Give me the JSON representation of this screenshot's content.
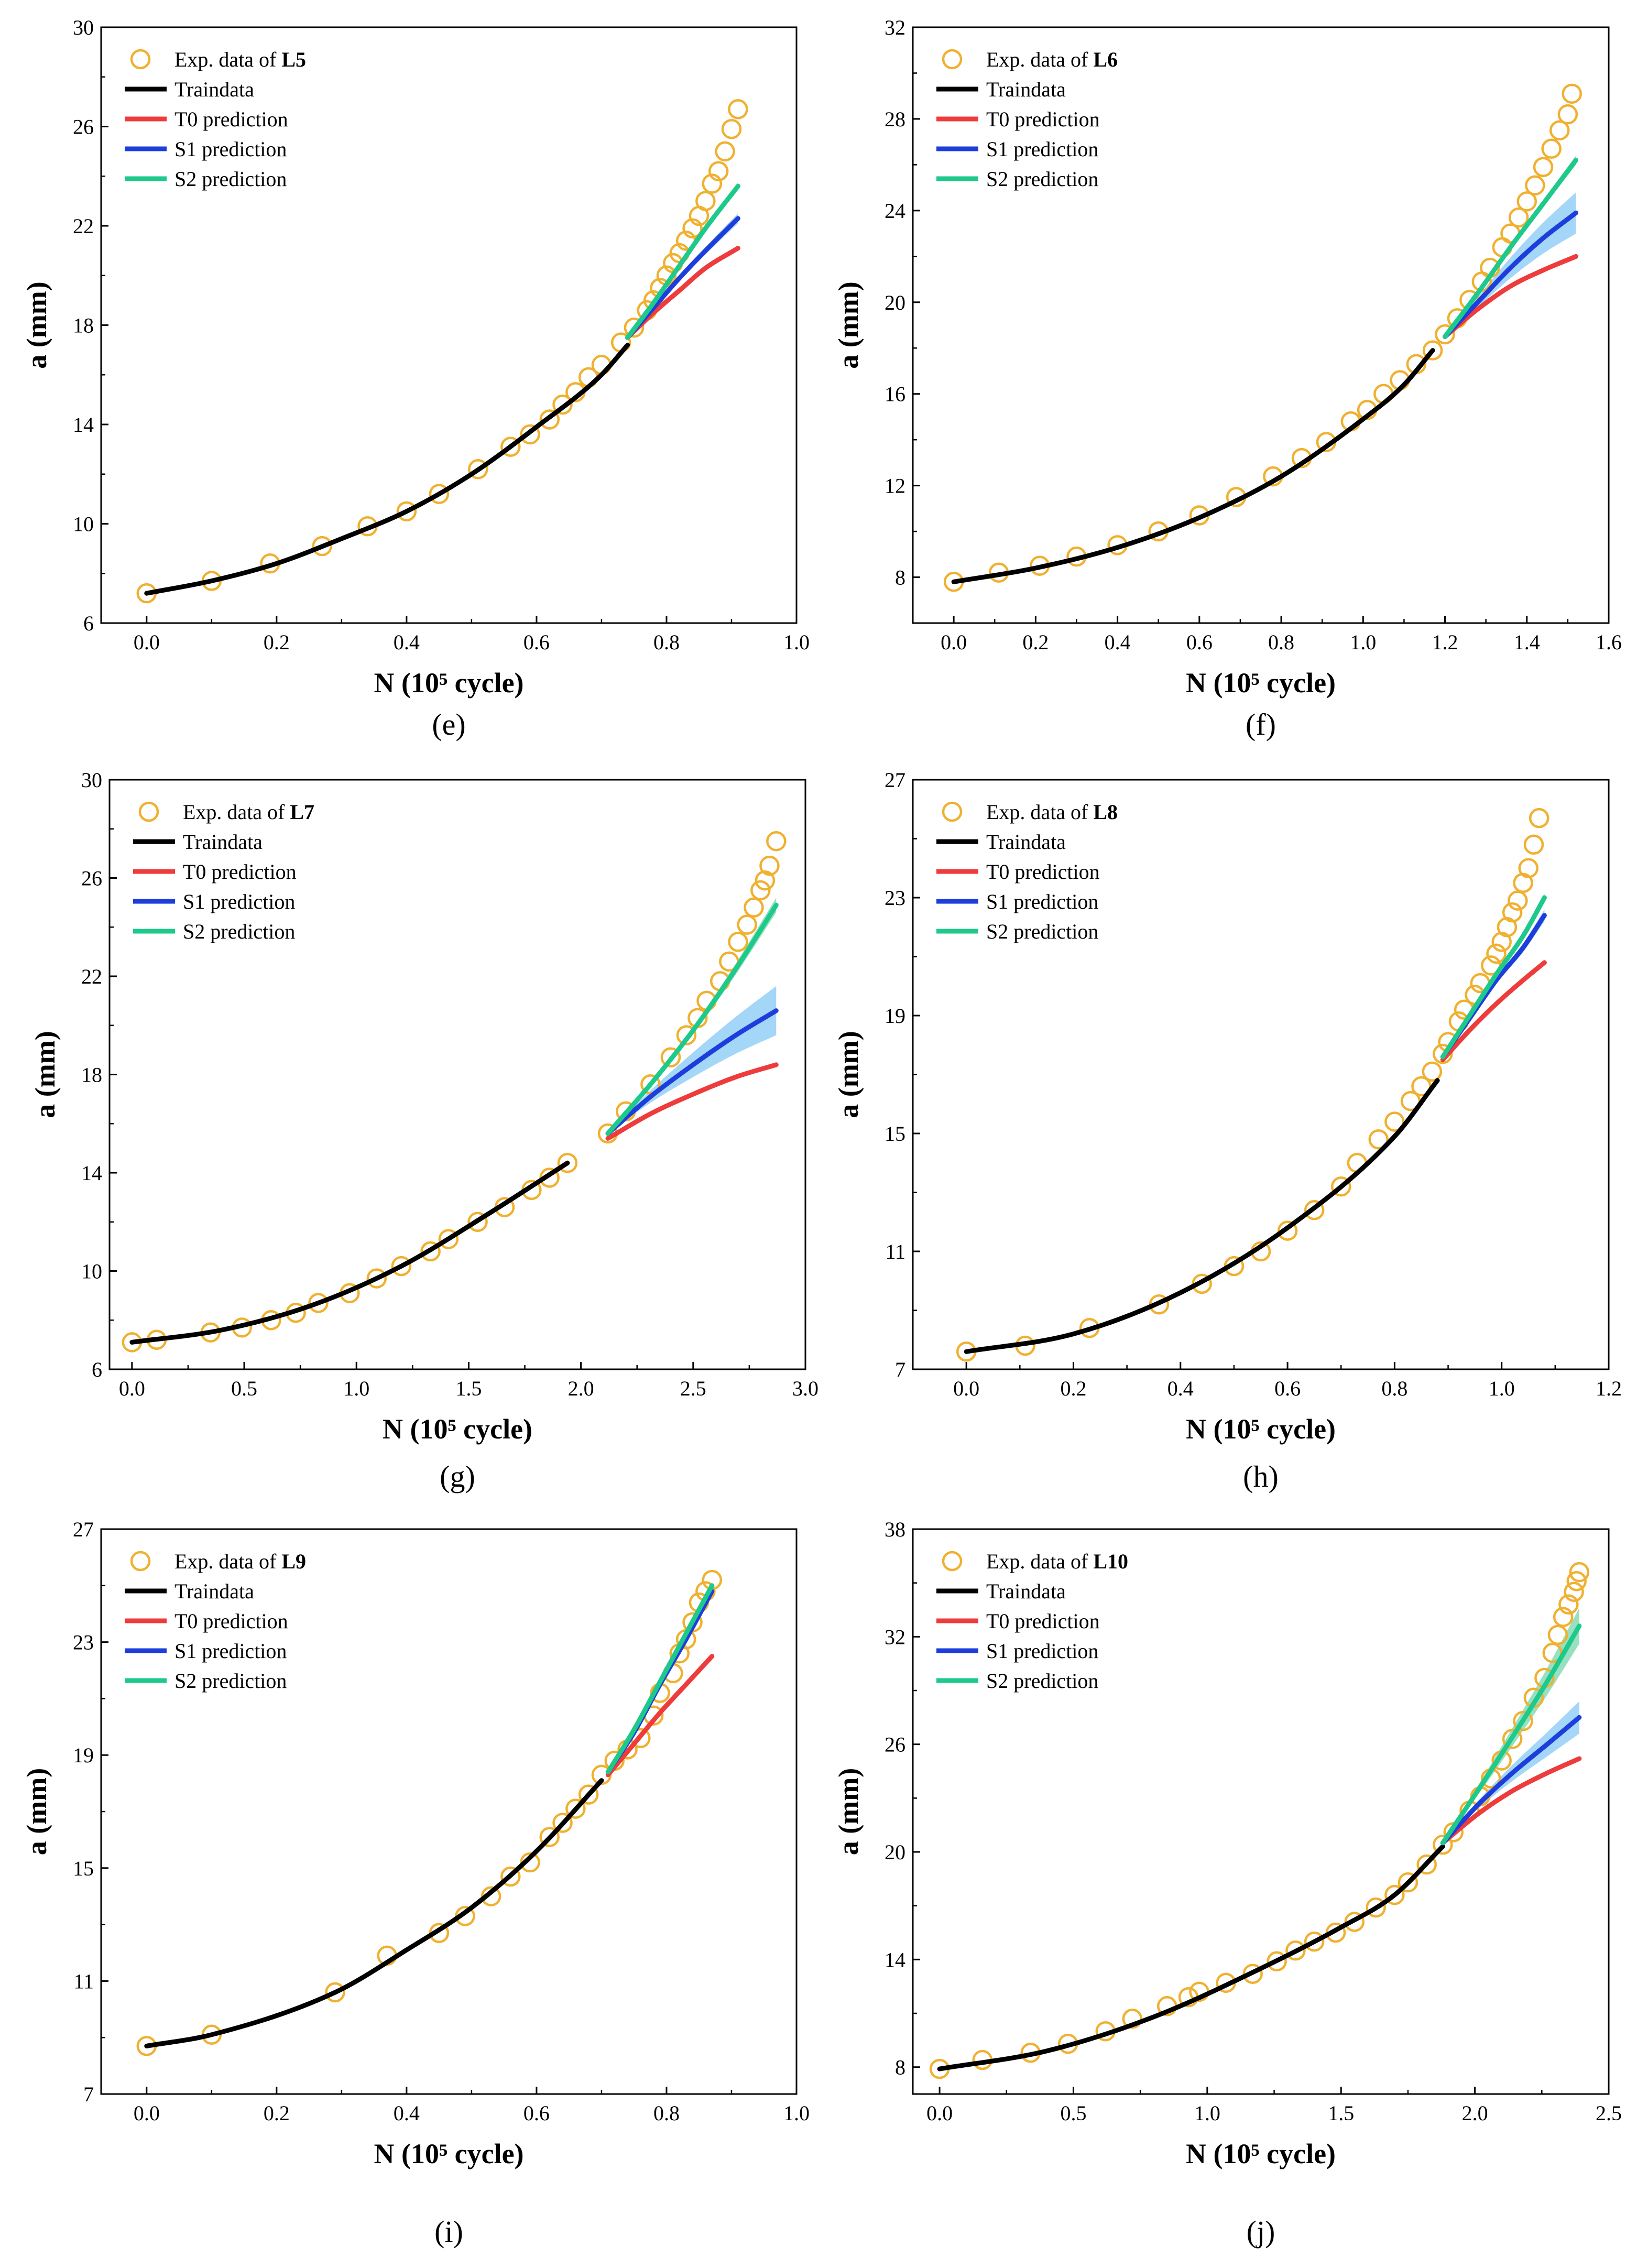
{
  "figure": {
    "colors": {
      "experimental": "#F0B030",
      "traindata": "#000000",
      "t0": "#EE3B3B",
      "s1": "#1E3EDC",
      "s2": "#1DC98B",
      "s1_band": "#8CCCF5",
      "s2_band": "#7ED8B0"
    },
    "legend_series_names": {
      "exp_prefix": "Exp. data of ",
      "traindata": "Traindata",
      "t0": "T0 prediction",
      "s1": "S1 prediction",
      "s2": "S2 prediction"
    }
  },
  "chart_data": [
    {
      "panel": "(e)",
      "caption_letter": "e",
      "specimen": "L5",
      "type": "scatter+line",
      "xlabel": "N (10⁵ cycle)",
      "ylabel": "a (mm)",
      "xlim": [
        -0.07,
        1.0
      ],
      "ylim": [
        6,
        30
      ],
      "xticks": [
        "0.0",
        "0.2",
        "0.4",
        "0.6",
        "0.8",
        "1.0"
      ],
      "xtick_values": [
        0.0,
        0.2,
        0.4,
        0.6,
        0.8,
        1.0
      ],
      "yticks": [
        "6",
        "10",
        "14",
        "18",
        "22",
        "26",
        "30"
      ],
      "ytick_values": [
        6,
        10,
        14,
        18,
        22,
        26,
        30
      ],
      "exp_x": [
        0.0,
        0.1,
        0.19,
        0.27,
        0.34,
        0.4,
        0.45,
        0.51,
        0.56,
        0.59,
        0.62,
        0.64,
        0.66,
        0.68,
        0.7,
        0.73,
        0.75,
        0.77,
        0.78,
        0.79,
        0.8,
        0.81,
        0.82,
        0.83,
        0.84,
        0.85,
        0.86,
        0.87,
        0.88,
        0.89,
        0.9,
        0.91
      ],
      "exp_y": [
        7.2,
        7.7,
        8.4,
        9.1,
        9.9,
        10.5,
        11.2,
        12.2,
        13.1,
        13.6,
        14.2,
        14.8,
        15.3,
        15.9,
        16.4,
        17.3,
        17.9,
        18.6,
        19.0,
        19.5,
        20.0,
        20.5,
        20.9,
        21.4,
        21.9,
        22.4,
        23.0,
        23.7,
        24.2,
        25.0,
        25.9,
        26.7
      ],
      "train_x": [
        0.0,
        0.1,
        0.2,
        0.3,
        0.4,
        0.5,
        0.6,
        0.7,
        0.74
      ],
      "train_y": [
        7.2,
        7.7,
        8.4,
        9.4,
        10.5,
        12.0,
        13.9,
        16.0,
        17.2
      ],
      "pred_x": [
        0.74,
        0.78,
        0.82,
        0.86,
        0.91
      ],
      "t0_y": [
        17.5,
        18.5,
        19.4,
        20.3,
        21.1
      ],
      "s1_y": [
        17.5,
        18.7,
        19.9,
        21.0,
        22.3
      ],
      "s1_band": 0.2,
      "s2_y": [
        17.5,
        18.9,
        20.4,
        21.9,
        23.6
      ],
      "s2_band": 0.15
    },
    {
      "panel": "(f)",
      "caption_letter": "f",
      "specimen": "L6",
      "type": "scatter+line",
      "xlabel": "N (10⁵ cycle)",
      "ylabel": "a (mm)",
      "xlim": [
        -0.1,
        1.6
      ],
      "ylim": [
        6,
        32
      ],
      "xticks": [
        "0.0",
        "0.2",
        "0.4",
        "0.6",
        "0.8",
        "1.0",
        "1.2",
        "1.4",
        "1.6"
      ],
      "xtick_values": [
        0.0,
        0.2,
        0.4,
        0.6,
        0.8,
        1.0,
        1.2,
        1.4,
        1.6
      ],
      "yticks": [
        "8",
        "12",
        "16",
        "20",
        "24",
        "28",
        "32"
      ],
      "ytick_values": [
        8,
        12,
        16,
        20,
        24,
        28,
        32
      ],
      "exp_x": [
        0.0,
        0.11,
        0.21,
        0.3,
        0.4,
        0.5,
        0.6,
        0.69,
        0.78,
        0.85,
        0.91,
        0.97,
        1.01,
        1.05,
        1.09,
        1.13,
        1.17,
        1.2,
        1.23,
        1.26,
        1.29,
        1.31,
        1.34,
        1.36,
        1.38,
        1.4,
        1.42,
        1.44,
        1.46,
        1.48,
        1.5,
        1.51
      ],
      "exp_y": [
        7.8,
        8.2,
        8.5,
        8.9,
        9.4,
        10.0,
        10.7,
        11.5,
        12.4,
        13.2,
        13.9,
        14.8,
        15.3,
        16.0,
        16.6,
        17.3,
        17.9,
        18.6,
        19.3,
        20.1,
        20.9,
        21.5,
        22.4,
        23.0,
        23.7,
        24.4,
        25.1,
        25.9,
        26.7,
        27.5,
        28.2,
        29.1
      ],
      "train_x": [
        0.0,
        0.2,
        0.4,
        0.6,
        0.8,
        1.0,
        1.1,
        1.17
      ],
      "train_y": [
        7.8,
        8.4,
        9.3,
        10.6,
        12.4,
        14.9,
        16.4,
        17.9
      ],
      "pred_x": [
        1.2,
        1.28,
        1.36,
        1.44,
        1.52
      ],
      "t0_y": [
        18.5,
        19.7,
        20.7,
        21.4,
        22.0
      ],
      "s1_y": [
        18.5,
        20.0,
        21.5,
        22.8,
        23.9
      ],
      "s1_band": 0.9,
      "s2_y": [
        18.5,
        20.4,
        22.4,
        24.3,
        26.2
      ],
      "s2_band": 0.2
    },
    {
      "panel": "(g)",
      "caption_letter": "g",
      "specimen": "L7",
      "type": "scatter+line",
      "xlabel": "N (10⁵ cycle)",
      "ylabel": "a (mm)",
      "xlim": [
        -0.1,
        3.0
      ],
      "ylim": [
        6,
        30
      ],
      "xticks": [
        "0.0",
        "0.5",
        "1.0",
        "1.5",
        "2.0",
        "2.5",
        "3.0"
      ],
      "xtick_values": [
        0.0,
        0.5,
        1.0,
        1.5,
        2.0,
        2.5,
        3.0
      ],
      "yticks": [
        "6",
        "10",
        "14",
        "18",
        "22",
        "26",
        "30"
      ],
      "ytick_values": [
        6,
        10,
        14,
        18,
        22,
        26,
        30
      ],
      "exp_x": [
        0.0,
        0.11,
        0.35,
        0.49,
        0.62,
        0.73,
        0.83,
        0.97,
        1.09,
        1.2,
        1.33,
        1.41,
        1.54,
        1.66,
        1.78,
        1.86,
        1.94,
        2.12,
        2.2,
        2.31,
        2.4,
        2.47,
        2.52,
        2.56,
        2.62,
        2.66,
        2.7,
        2.74,
        2.77,
        2.8,
        2.82,
        2.84,
        2.87
      ],
      "exp_y": [
        7.1,
        7.2,
        7.5,
        7.7,
        8.0,
        8.3,
        8.7,
        9.1,
        9.7,
        10.2,
        10.8,
        11.3,
        12.0,
        12.6,
        13.3,
        13.8,
        14.4,
        15.6,
        16.5,
        17.6,
        18.7,
        19.6,
        20.3,
        21.0,
        21.8,
        22.6,
        23.4,
        24.1,
        24.8,
        25.5,
        25.9,
        26.5,
        27.5
      ],
      "train_x": [
        0.0,
        0.4,
        0.8,
        1.2,
        1.6,
        1.94
      ],
      "train_y": [
        7.1,
        7.6,
        8.6,
        10.2,
        12.4,
        14.4
      ],
      "pred_x": [
        2.12,
        2.31,
        2.5,
        2.69,
        2.87
      ],
      "t0_y": [
        15.4,
        16.4,
        17.2,
        17.9,
        18.4
      ],
      "s1_y": [
        15.6,
        17.1,
        18.4,
        19.6,
        20.6
      ],
      "s1_band": 1.0,
      "s2_y": [
        15.6,
        17.6,
        19.8,
        22.3,
        24.9
      ],
      "s2_band": 0.3
    },
    {
      "panel": "(h)",
      "caption_letter": "h",
      "specimen": "L8",
      "type": "scatter+line",
      "xlabel": "N (10⁵ cycle)",
      "ylabel": "a (mm)",
      "xlim": [
        -0.1,
        1.2
      ],
      "ylim": [
        7,
        27
      ],
      "xticks": [
        "0.0",
        "0.2",
        "0.4",
        "0.6",
        "0.8",
        "1.0",
        "1.2"
      ],
      "xtick_values": [
        0.0,
        0.2,
        0.4,
        0.6,
        0.8,
        1.0,
        1.2
      ],
      "yticks": [
        "7",
        "11",
        "15",
        "19",
        "23",
        "27"
      ],
      "ytick_values": [
        7,
        11,
        15,
        19,
        23,
        27
      ],
      "exp_x": [
        0.0,
        0.11,
        0.23,
        0.36,
        0.44,
        0.5,
        0.55,
        0.6,
        0.65,
        0.7,
        0.73,
        0.77,
        0.8,
        0.83,
        0.85,
        0.87,
        0.89,
        0.9,
        0.92,
        0.93,
        0.95,
        0.96,
        0.98,
        0.99,
        1.0,
        1.01,
        1.02,
        1.03,
        1.04,
        1.05,
        1.06,
        1.07
      ],
      "exp_y": [
        7.6,
        7.8,
        8.4,
        9.2,
        9.9,
        10.5,
        11.0,
        11.7,
        12.4,
        13.2,
        14.0,
        14.8,
        15.4,
        16.1,
        16.6,
        17.1,
        17.7,
        18.1,
        18.8,
        19.2,
        19.7,
        20.1,
        20.7,
        21.1,
        21.5,
        22.0,
        22.5,
        22.9,
        23.5,
        24.0,
        24.8,
        25.7
      ],
      "train_x": [
        0.0,
        0.2,
        0.4,
        0.6,
        0.8,
        0.88
      ],
      "train_y": [
        7.6,
        8.2,
        9.6,
        11.8,
        14.9,
        16.8
      ],
      "pred_x": [
        0.89,
        0.94,
        0.99,
        1.04,
        1.08
      ],
      "t0_y": [
        17.5,
        18.5,
        19.4,
        20.2,
        20.8
      ],
      "s1_y": [
        17.6,
        18.9,
        20.2,
        21.3,
        22.4
      ],
      "s1_band": 0.2,
      "s2_y": [
        17.6,
        19.0,
        20.4,
        21.7,
        23.0
      ],
      "s2_band": 0.15
    },
    {
      "panel": "(i)",
      "caption_letter": "i",
      "specimen": "L9",
      "type": "scatter+line",
      "xlabel": "N (10⁵ cycle)",
      "ylabel": "a (mm)",
      "xlim": [
        -0.07,
        1.0
      ],
      "ylim": [
        7,
        27
      ],
      "xticks": [
        "0.0",
        "0.2",
        "0.4",
        "0.6",
        "0.8",
        "1.0"
      ],
      "xtick_values": [
        0.0,
        0.2,
        0.4,
        0.6,
        0.8,
        1.0
      ],
      "yticks": [
        "7",
        "11",
        "15",
        "19",
        "23",
        "27"
      ],
      "ytick_values": [
        7,
        11,
        15,
        19,
        23,
        27
      ],
      "exp_x": [
        0.0,
        0.1,
        0.29,
        0.37,
        0.45,
        0.49,
        0.53,
        0.56,
        0.59,
        0.62,
        0.64,
        0.66,
        0.68,
        0.7,
        0.72,
        0.74,
        0.76,
        0.78,
        0.79,
        0.81,
        0.82,
        0.83,
        0.84,
        0.85,
        0.86,
        0.87
      ],
      "exp_y": [
        8.7,
        9.1,
        10.6,
        11.9,
        12.7,
        13.3,
        14.0,
        14.7,
        15.2,
        16.1,
        16.6,
        17.1,
        17.6,
        18.3,
        18.8,
        19.2,
        19.6,
        20.4,
        21.2,
        21.9,
        22.6,
        23.1,
        23.7,
        24.4,
        24.8,
        25.2
      ],
      "train_x": [
        0.0,
        0.1,
        0.29,
        0.4,
        0.5,
        0.6,
        0.7
      ],
      "train_y": [
        8.7,
        9.1,
        10.6,
        12.1,
        13.6,
        15.6,
        18.1
      ],
      "pred_x": [
        0.71,
        0.75,
        0.79,
        0.83,
        0.87
      ],
      "t0_y": [
        18.3,
        19.4,
        20.5,
        21.5,
        22.5
      ],
      "s1_y": [
        18.4,
        19.8,
        21.5,
        23.1,
        24.8
      ],
      "s1_band": 0.15,
      "s2_y": [
        18.4,
        19.9,
        21.6,
        23.3,
        25.0
      ],
      "s2_band": 0.1
    },
    {
      "panel": "(j)",
      "caption_letter": "j",
      "specimen": "L10",
      "type": "scatter+line",
      "xlabel": "N (10⁵ cycle)",
      "ylabel": "a (mm)",
      "xlim": [
        -0.1,
        2.5
      ],
      "ylim": [
        6.5,
        38
      ],
      "xticks": [
        "0.0",
        "0.5",
        "1.0",
        "1.5",
        "2.0",
        "2.5"
      ],
      "xtick_values": [
        0.0,
        0.5,
        1.0,
        1.5,
        2.0,
        2.5
      ],
      "yticks": [
        "8",
        "14",
        "20",
        "26",
        "32",
        "38"
      ],
      "ytick_values": [
        8,
        14,
        20,
        26,
        32,
        38
      ],
      "exp_x": [
        0.0,
        0.16,
        0.34,
        0.48,
        0.62,
        0.72,
        0.85,
        0.93,
        0.97,
        1.07,
        1.17,
        1.26,
        1.33,
        1.4,
        1.48,
        1.55,
        1.63,
        1.7,
        1.75,
        1.82,
        1.88,
        1.92,
        1.98,
        2.02,
        2.06,
        2.1,
        2.14,
        2.18,
        2.22,
        2.26,
        2.29,
        2.31,
        2.33,
        2.35,
        2.37,
        2.38,
        2.39
      ],
      "exp_y": [
        7.9,
        8.4,
        8.8,
        9.3,
        10.0,
        10.7,
        11.4,
        11.9,
        12.2,
        12.7,
        13.2,
        13.9,
        14.5,
        15.0,
        15.5,
        16.1,
        16.9,
        17.6,
        18.3,
        19.3,
        20.4,
        21.1,
        22.3,
        23.1,
        24.1,
        25.1,
        26.3,
        27.3,
        28.6,
        29.7,
        31.1,
        32.1,
        33.1,
        33.8,
        34.5,
        35.1,
        35.6
      ],
      "train_x": [
        0.0,
        0.4,
        0.8,
        1.2,
        1.5,
        1.7,
        1.88
      ],
      "train_y": [
        7.9,
        8.9,
        10.8,
        13.5,
        15.8,
        17.6,
        20.3
      ],
      "pred_x": [
        1.88,
        2.01,
        2.14,
        2.27,
        2.39
      ],
      "t0_y": [
        20.5,
        22.1,
        23.4,
        24.4,
        25.2
      ],
      "s1_y": [
        20.5,
        22.6,
        24.4,
        26.0,
        27.5
      ],
      "s1_band": 0.9,
      "s2_y": [
        20.5,
        23.4,
        26.4,
        29.5,
        32.6
      ],
      "s2_band": 1.0
    }
  ]
}
